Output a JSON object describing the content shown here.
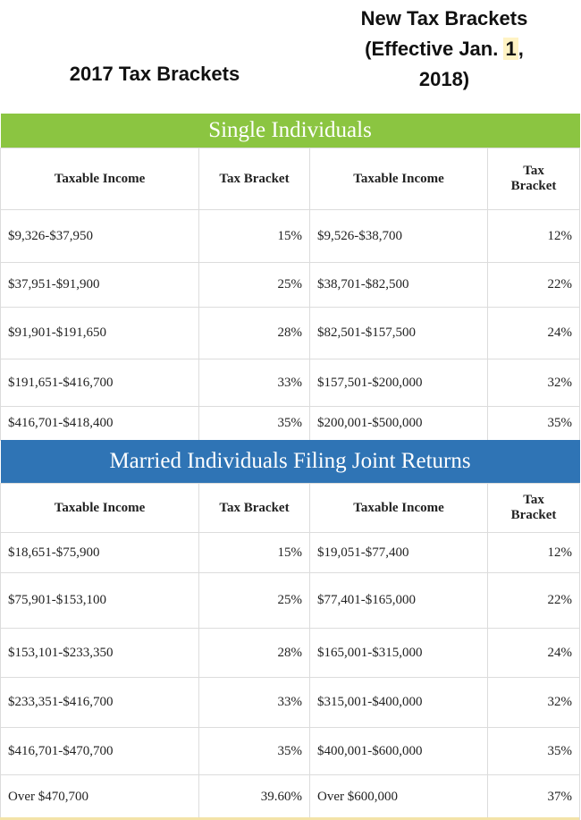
{
  "header": {
    "old_title": "2017 Tax Brackets",
    "new_title_line1": "New Tax Brackets",
    "new_title_line2_pre": "(Effective Jan. ",
    "new_title_line2_hl": "1",
    "new_title_line2_post": ",",
    "new_title_line3": "2018)"
  },
  "columns": {
    "income": "Taxable Income",
    "bracket": "Tax Bracket",
    "income_new": "Taxable Income",
    "bracket_new_1": "Tax",
    "bracket_new_2": "Bracket"
  },
  "single": {
    "title": "Single Individuals",
    "rows": [
      {
        "old_income": "$9,326-$37,950",
        "old_rate": "15%",
        "new_income": "$9,526-$38,700",
        "new_rate": "12%"
      },
      {
        "old_income": "$37,951-$91,900",
        "old_rate": "25%",
        "new_income": "$38,701-$82,500",
        "new_rate": "22%"
      },
      {
        "old_income": "$91,901-$191,650",
        "old_rate": "28%",
        "new_income": "$82,501-$157,500",
        "new_rate": "24%"
      },
      {
        "old_income": "$191,651-$416,700",
        "old_rate": "33%",
        "new_income": "$157,501-$200,000",
        "new_rate": "32%"
      },
      {
        "old_income": "$416,701-$418,400",
        "old_rate": "35%",
        "new_income": "$200,001-$500,000",
        "new_rate": "35%"
      }
    ]
  },
  "married": {
    "title": "Married Individuals Filing Joint Returns",
    "rows": [
      {
        "old_income": "$18,651-$75,900",
        "old_rate": "15%",
        "new_income": "$19,051-$77,400",
        "new_rate": "12%"
      },
      {
        "old_income": "$75,901-$153,100",
        "old_rate": "25%",
        "new_income": "$77,401-$165,000",
        "new_rate": "22%"
      },
      {
        "old_income": "$153,101-$233,350",
        "old_rate": "28%",
        "new_income": "$165,001-$315,000",
        "new_rate": "24%"
      },
      {
        "old_income": "$233,351-$416,700",
        "old_rate": "33%",
        "new_income": "$315,001-$400,000",
        "new_rate": "32%"
      },
      {
        "old_income": "$416,701-$470,700",
        "old_rate": "35%",
        "new_income": "$400,001-$600,000",
        "new_rate": "35%"
      },
      {
        "old_income": "Over $470,700",
        "old_rate": "39.60%",
        "new_income": "Over $600,000",
        "new_rate": "37%"
      }
    ]
  },
  "colors": {
    "single_bar": "#8bc541",
    "married_bar": "#2f74b5"
  }
}
